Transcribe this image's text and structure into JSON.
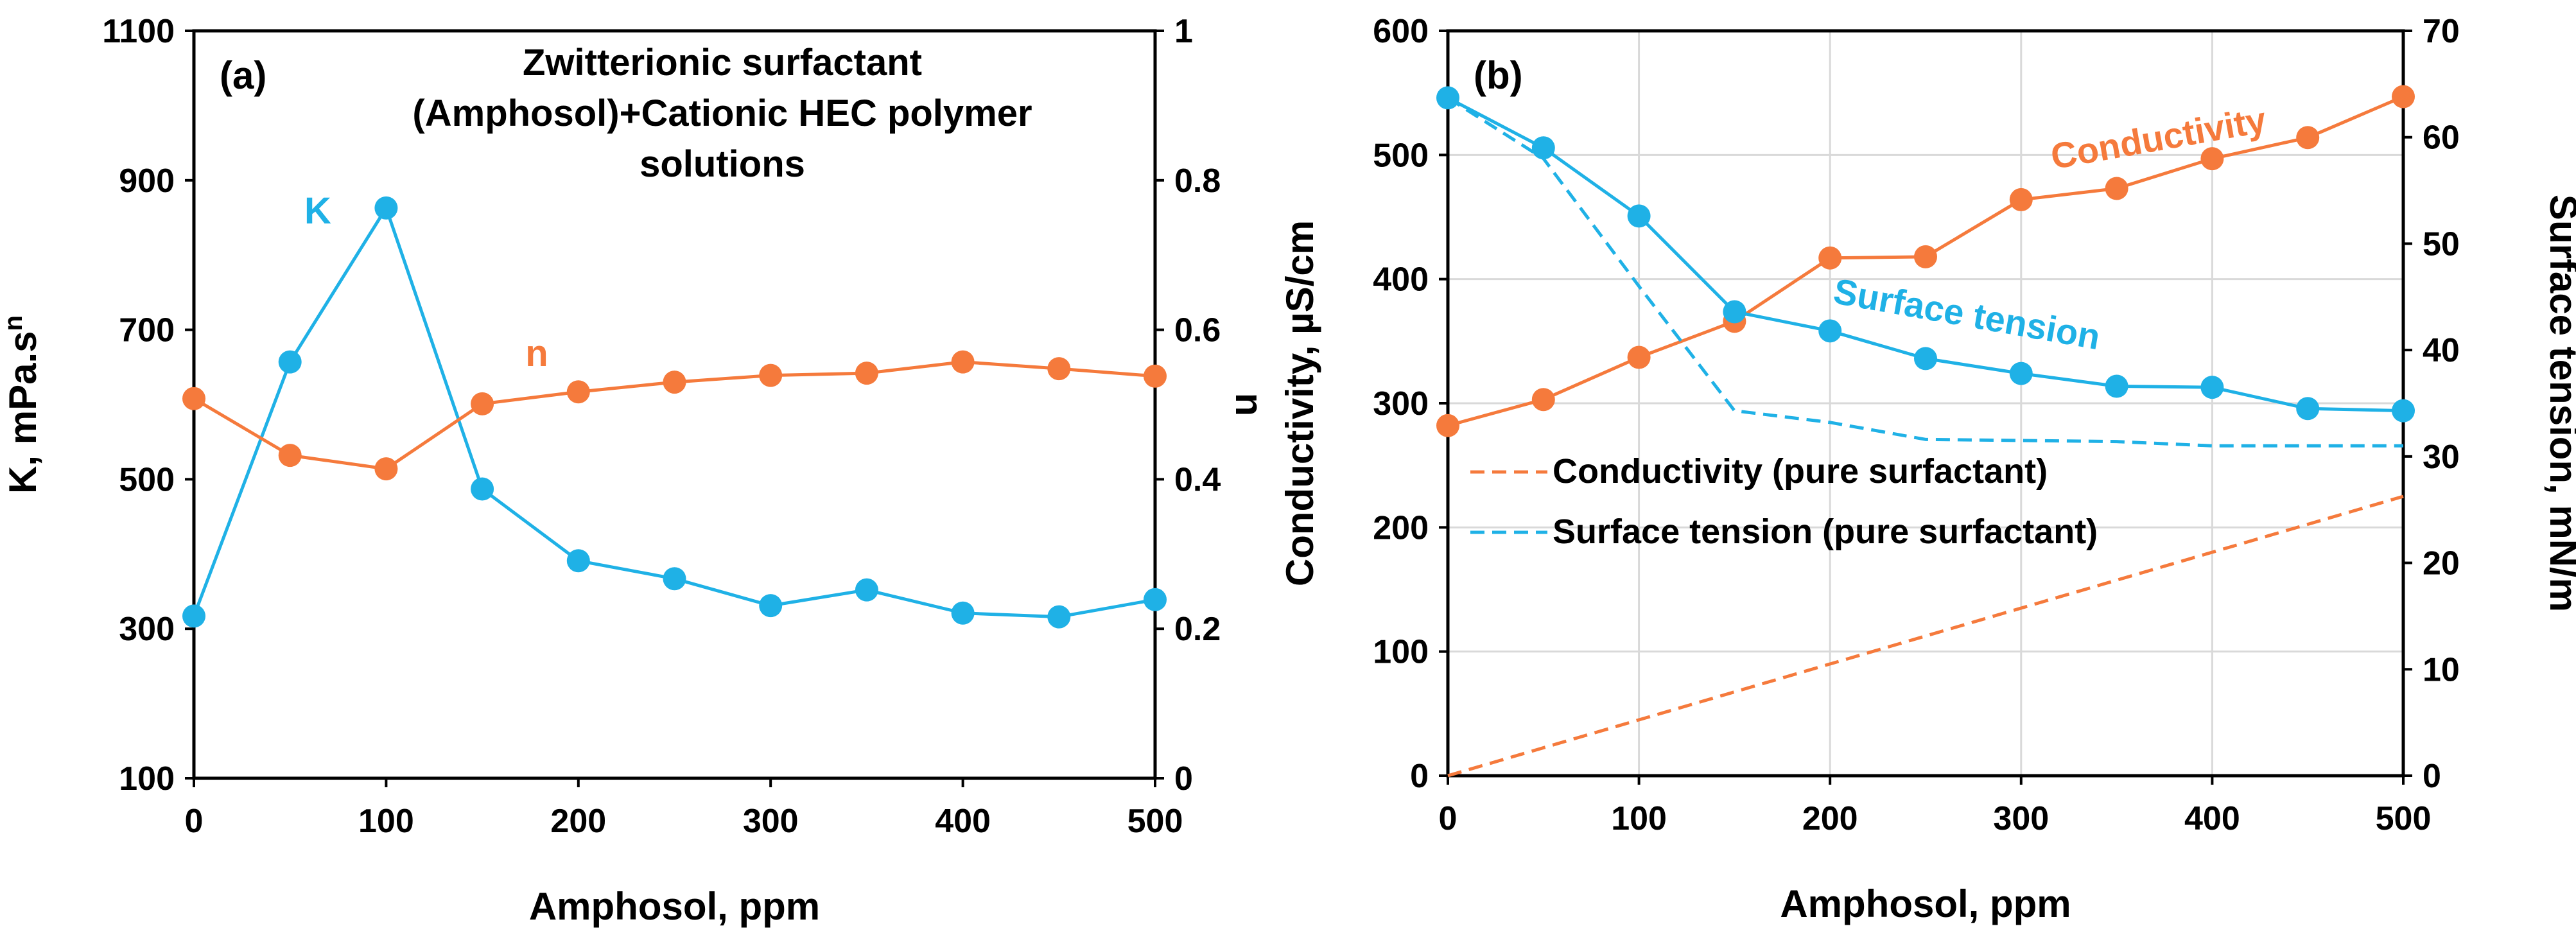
{
  "figure": {
    "colors": {
      "axis": "#000000",
      "grid": "#d9d9d9",
      "blue": "#1fb1e6",
      "orange": "#f57a3c"
    }
  },
  "chart_data": [
    {
      "panel_label": "(a)",
      "type": "line",
      "title": "Zwitterionic surfactant (Amphosol)+Cationic HEC polymer solutions",
      "title_lines": [
        "Zwitterionic surfactant",
        "(Amphosol)+Cationic HEC polymer",
        "solutions"
      ],
      "xlabel": "Amphosol, ppm",
      "ylabel_left": "K, mPa.s",
      "ylabel_left_sup": "n",
      "ylabel_right": "n",
      "xlim": [
        0,
        500
      ],
      "ylim_left": [
        100,
        1100
      ],
      "ylim_right": [
        0,
        1
      ],
      "xticks": [
        0,
        100,
        200,
        300,
        400,
        500
      ],
      "yticks_left": [
        100,
        300,
        500,
        700,
        900,
        1100
      ],
      "yticks_right": [
        0,
        0.2,
        0.4,
        0.6,
        0.8,
        1
      ],
      "grid": false,
      "series": [
        {
          "name": "K",
          "axis": "left",
          "color": "#1fb1e6",
          "style": "solid",
          "markers": true,
          "x": [
            0,
            50,
            100,
            150,
            200,
            250,
            300,
            350,
            400,
            450,
            500
          ],
          "y": [
            317,
            657,
            863,
            487,
            391,
            367,
            331,
            352,
            321,
            316,
            339
          ]
        },
        {
          "name": "n",
          "axis": "right",
          "color": "#f57a3c",
          "style": "solid",
          "markers": true,
          "x": [
            0,
            50,
            100,
            150,
            200,
            250,
            300,
            350,
            400,
            450,
            500
          ],
          "y": [
            0.508,
            0.432,
            0.414,
            0.501,
            0.517,
            0.53,
            0.539,
            0.542,
            0.557,
            0.548,
            0.538
          ]
        }
      ]
    },
    {
      "panel_label": "(b)",
      "type": "line",
      "title": "",
      "xlabel": "Amphosol, ppm",
      "ylabel_left": "Conductivity, µS/cm",
      "ylabel_right": "Surface tension, mN/m",
      "xlim": [
        0,
        500
      ],
      "ylim_left": [
        0,
        600
      ],
      "ylim_right": [
        0,
        70
      ],
      "xticks": [
        0,
        100,
        200,
        300,
        400,
        500
      ],
      "yticks_left": [
        0,
        100,
        200,
        300,
        400,
        500,
        600
      ],
      "yticks_right": [
        0,
        10,
        20,
        30,
        40,
        50,
        60,
        70
      ],
      "grid": true,
      "legend_position": "lower-left",
      "series": [
        {
          "name": "Conductivity",
          "axis": "left",
          "color": "#f57a3c",
          "style": "solid",
          "markers": true,
          "x": [
            0,
            50,
            100,
            150,
            200,
            250,
            300,
            350,
            400,
            450,
            500
          ],
          "y": [
            282,
            303,
            337,
            366,
            417,
            418,
            464,
            473,
            497,
            514,
            547
          ]
        },
        {
          "name": "Surface tension",
          "axis": "right",
          "color": "#1fb1e6",
          "style": "solid",
          "markers": true,
          "x": [
            0,
            50,
            100,
            150,
            200,
            250,
            300,
            350,
            400,
            450,
            500
          ],
          "y": [
            63.7,
            59.0,
            52.6,
            43.6,
            41.8,
            39.2,
            37.8,
            36.6,
            36.5,
            34.5,
            34.3
          ]
        },
        {
          "name": "Conductivity (pure surfactant)",
          "axis": "left",
          "color": "#f57a3c",
          "style": "dashed",
          "markers": false,
          "x": [
            0,
            500
          ],
          "y": [
            0,
            225
          ]
        },
        {
          "name": "Surface tension (pure surfactant)",
          "axis": "right",
          "color": "#1fb1e6",
          "style": "dashed",
          "markers": false,
          "x": [
            0,
            50,
            100,
            150,
            200,
            250,
            300,
            350,
            400,
            450,
            500
          ],
          "y": [
            63.7,
            58.0,
            46.0,
            34.3,
            33.2,
            31.6,
            31.5,
            31.4,
            31.0,
            31.0,
            31.0
          ]
        }
      ]
    }
  ]
}
